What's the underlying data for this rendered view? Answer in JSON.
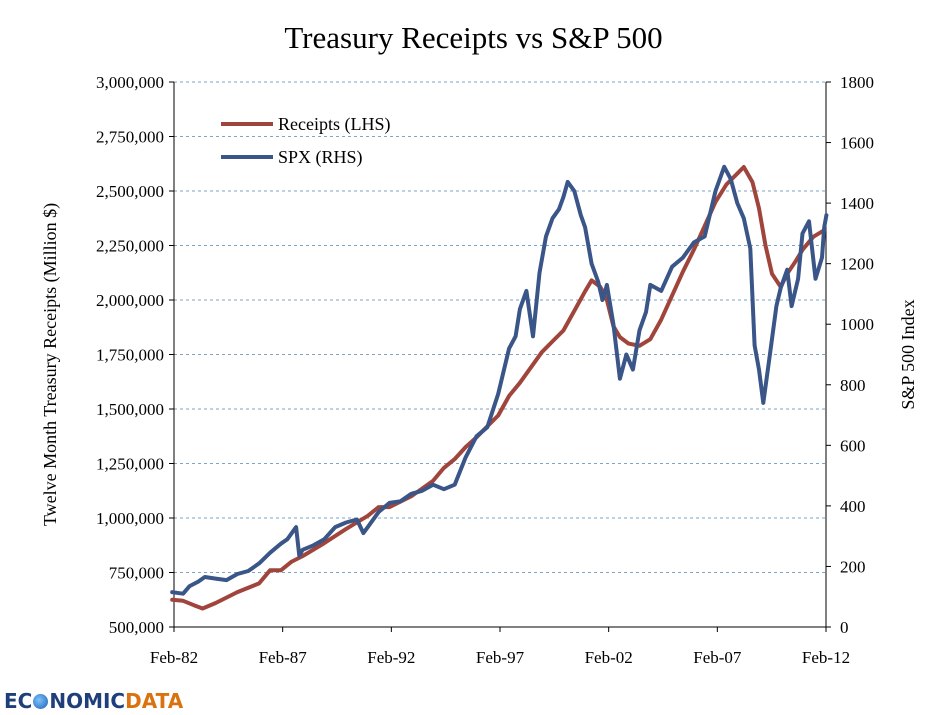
{
  "chart_data": {
    "type": "line",
    "title": "Treasury Receipts vs S&P 500",
    "ylabel": "Twelve Month Treasury Receipts (Million $)",
    "y2label": "S&P 500 Index",
    "xlabel": "",
    "x_range": [
      1982.083,
      2012.083
    ],
    "ylim": [
      500000,
      3000000
    ],
    "y2lim": [
      0,
      1800
    ],
    "grid": true,
    "legend_position": "top-left",
    "x_ticks": [
      {
        "label": "Feb-82",
        "value": 1982.083
      },
      {
        "label": "Feb-87",
        "value": 1987.083
      },
      {
        "label": "Feb-92",
        "value": 1992.083
      },
      {
        "label": "Feb-97",
        "value": 1997.083
      },
      {
        "label": "Feb-02",
        "value": 2002.083
      },
      {
        "label": "Feb-07",
        "value": 2007.083
      },
      {
        "label": "Feb-12",
        "value": 2012.083
      }
    ],
    "y_ticks": [
      {
        "label": "500,000",
        "value": 500000
      },
      {
        "label": "750,000",
        "value": 750000
      },
      {
        "label": "1,000,000",
        "value": 1000000
      },
      {
        "label": "1,250,000",
        "value": 1250000
      },
      {
        "label": "1,500,000",
        "value": 1500000
      },
      {
        "label": "1,750,000",
        "value": 1750000
      },
      {
        "label": "2,000,000",
        "value": 2000000
      },
      {
        "label": "2,250,000",
        "value": 2250000
      },
      {
        "label": "2,500,000",
        "value": 2500000
      },
      {
        "label": "2,750,000",
        "value": 2750000
      },
      {
        "label": "3,000,000",
        "value": 3000000
      }
    ],
    "y2_ticks": [
      {
        "label": "0",
        "value": 0
      },
      {
        "label": "200",
        "value": 200
      },
      {
        "label": "400",
        "value": 400
      },
      {
        "label": "600",
        "value": 600
      },
      {
        "label": "800",
        "value": 800
      },
      {
        "label": "1000",
        "value": 1000
      },
      {
        "label": "1200",
        "value": 1200
      },
      {
        "label": "1400",
        "value": 1400
      },
      {
        "label": "1600",
        "value": 1600
      },
      {
        "label": "1800",
        "value": 1800
      }
    ],
    "series": [
      {
        "name": "Receipts (LHS)",
        "axis": "left",
        "color": "#a0453c",
        "points": [
          [
            1982.0,
            625000
          ],
          [
            1982.5,
            620000
          ],
          [
            1983.0,
            600000
          ],
          [
            1983.4,
            585000
          ],
          [
            1984.0,
            610000
          ],
          [
            1985.0,
            660000
          ],
          [
            1986.0,
            700000
          ],
          [
            1986.5,
            760000
          ],
          [
            1987.0,
            760000
          ],
          [
            1987.5,
            800000
          ],
          [
            1988.0,
            825000
          ],
          [
            1989.0,
            885000
          ],
          [
            1990.0,
            950000
          ],
          [
            1991.0,
            1010000
          ],
          [
            1991.5,
            1050000
          ],
          [
            1992.0,
            1050000
          ],
          [
            1993.0,
            1100000
          ],
          [
            1993.5,
            1135000
          ],
          [
            1994.0,
            1170000
          ],
          [
            1994.5,
            1230000
          ],
          [
            1995.0,
            1270000
          ],
          [
            1995.5,
            1325000
          ],
          [
            1996.0,
            1370000
          ],
          [
            1996.5,
            1420000
          ],
          [
            1997.0,
            1470000
          ],
          [
            1997.5,
            1560000
          ],
          [
            1998.0,
            1620000
          ],
          [
            1998.5,
            1690000
          ],
          [
            1999.0,
            1760000
          ],
          [
            1999.5,
            1810000
          ],
          [
            2000.0,
            1860000
          ],
          [
            2000.5,
            1950000
          ],
          [
            2001.0,
            2040000
          ],
          [
            2001.3,
            2090000
          ],
          [
            2001.7,
            2060000
          ],
          [
            2002.0,
            2000000
          ],
          [
            2002.3,
            1880000
          ],
          [
            2002.6,
            1830000
          ],
          [
            2003.0,
            1800000
          ],
          [
            2003.5,
            1790000
          ],
          [
            2004.0,
            1820000
          ],
          [
            2004.5,
            1910000
          ],
          [
            2005.0,
            2020000
          ],
          [
            2005.5,
            2130000
          ],
          [
            2006.0,
            2230000
          ],
          [
            2006.5,
            2340000
          ],
          [
            2007.0,
            2450000
          ],
          [
            2007.5,
            2530000
          ],
          [
            2008.0,
            2580000
          ],
          [
            2008.3,
            2610000
          ],
          [
            2008.7,
            2540000
          ],
          [
            2009.0,
            2420000
          ],
          [
            2009.3,
            2250000
          ],
          [
            2009.6,
            2120000
          ],
          [
            2010.0,
            2060000
          ],
          [
            2010.3,
            2120000
          ],
          [
            2010.7,
            2180000
          ],
          [
            2011.0,
            2230000
          ],
          [
            2011.5,
            2290000
          ],
          [
            2012.0,
            2320000
          ]
        ]
      },
      {
        "name": "SPX (RHS)",
        "axis": "right",
        "color": "#3a5587",
        "points": [
          [
            1982.0,
            115
          ],
          [
            1982.5,
            110
          ],
          [
            1982.8,
            135
          ],
          [
            1983.2,
            150
          ],
          [
            1983.5,
            165
          ],
          [
            1984.0,
            160
          ],
          [
            1984.5,
            155
          ],
          [
            1985.0,
            175
          ],
          [
            1985.5,
            185
          ],
          [
            1986.0,
            210
          ],
          [
            1986.5,
            245
          ],
          [
            1987.0,
            275
          ],
          [
            1987.3,
            290
          ],
          [
            1987.7,
            330
          ],
          [
            1987.85,
            235
          ],
          [
            1988.0,
            255
          ],
          [
            1988.5,
            270
          ],
          [
            1989.0,
            290
          ],
          [
            1989.5,
            330
          ],
          [
            1990.0,
            345
          ],
          [
            1990.5,
            355
          ],
          [
            1990.8,
            310
          ],
          [
            1991.0,
            330
          ],
          [
            1991.5,
            380
          ],
          [
            1992.0,
            410
          ],
          [
            1992.5,
            415
          ],
          [
            1993.0,
            440
          ],
          [
            1993.5,
            450
          ],
          [
            1994.0,
            470
          ],
          [
            1994.5,
            455
          ],
          [
            1995.0,
            470
          ],
          [
            1995.5,
            560
          ],
          [
            1996.0,
            630
          ],
          [
            1996.5,
            660
          ],
          [
            1997.0,
            770
          ],
          [
            1997.5,
            920
          ],
          [
            1997.8,
            960
          ],
          [
            1998.0,
            1050
          ],
          [
            1998.3,
            1110
          ],
          [
            1998.6,
            960
          ],
          [
            1998.9,
            1170
          ],
          [
            1999.2,
            1290
          ],
          [
            1999.5,
            1350
          ],
          [
            1999.8,
            1380
          ],
          [
            2000.0,
            1420
          ],
          [
            2000.2,
            1470
          ],
          [
            2000.5,
            1440
          ],
          [
            2000.8,
            1360
          ],
          [
            2001.0,
            1320
          ],
          [
            2001.3,
            1200
          ],
          [
            2001.6,
            1140
          ],
          [
            2001.8,
            1080
          ],
          [
            2002.0,
            1130
          ],
          [
            2002.3,
            1000
          ],
          [
            2002.6,
            820
          ],
          [
            2002.9,
            900
          ],
          [
            2003.2,
            850
          ],
          [
            2003.5,
            980
          ],
          [
            2003.8,
            1040
          ],
          [
            2004.0,
            1130
          ],
          [
            2004.5,
            1110
          ],
          [
            2005.0,
            1190
          ],
          [
            2005.5,
            1220
          ],
          [
            2006.0,
            1270
          ],
          [
            2006.5,
            1290
          ],
          [
            2007.0,
            1440
          ],
          [
            2007.4,
            1520
          ],
          [
            2007.7,
            1480
          ],
          [
            2008.0,
            1400
          ],
          [
            2008.3,
            1350
          ],
          [
            2008.6,
            1250
          ],
          [
            2008.8,
            930
          ],
          [
            2009.0,
            850
          ],
          [
            2009.2,
            740
          ],
          [
            2009.5,
            900
          ],
          [
            2009.8,
            1060
          ],
          [
            2010.0,
            1120
          ],
          [
            2010.3,
            1180
          ],
          [
            2010.5,
            1060
          ],
          [
            2010.8,
            1150
          ],
          [
            2011.0,
            1300
          ],
          [
            2011.3,
            1340
          ],
          [
            2011.6,
            1150
          ],
          [
            2011.9,
            1220
          ],
          [
            2012.0,
            1320
          ],
          [
            2012.1,
            1360
          ]
        ]
      }
    ]
  },
  "watermark": {
    "part1": "EC",
    "part2": "NOMIC",
    "part3": "DATA"
  }
}
